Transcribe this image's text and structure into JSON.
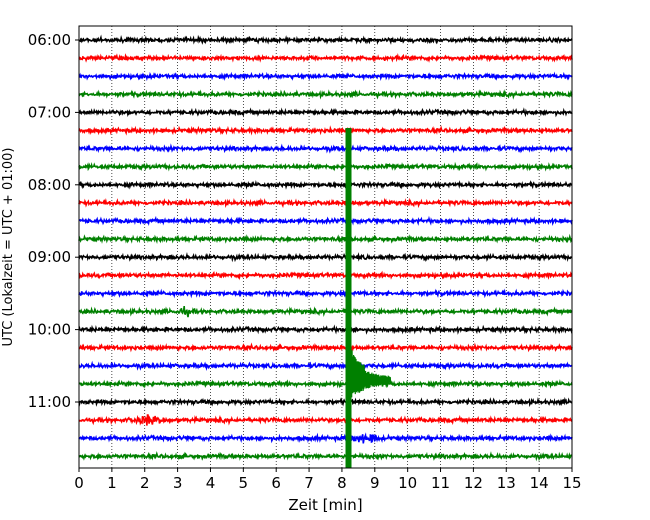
{
  "chart_data": {
    "type": "line",
    "title": "",
    "xlabel": "Zeit  [min]",
    "ylabel": "UTC (Lokalzeit = UTC + 01:00)",
    "xlim": [
      0,
      15
    ],
    "x_ticks": [
      "0",
      "1",
      "2",
      "3",
      "4",
      "5",
      "6",
      "7",
      "8",
      "9",
      "10",
      "11",
      "12",
      "13",
      "14",
      "15"
    ],
    "y_tick_labels": [
      "06:00",
      "07:00",
      "08:00",
      "09:00",
      "10:00",
      "11:00"
    ],
    "grid": "vertical dotted lines at each minute",
    "trace_interval_minutes": 15,
    "trace_start": "06:00",
    "trace_count": 24,
    "trace_colors": [
      "#000000",
      "#ff0000",
      "#0000ff",
      "#008000"
    ],
    "event": {
      "description": "earthquake signal",
      "onset_minute": 8.2,
      "traces_affected_from": "07:15",
      "traces_affected_to": "11:45",
      "color": "#008000"
    },
    "axis_color": "#000000",
    "grid_color": "#000000"
  }
}
